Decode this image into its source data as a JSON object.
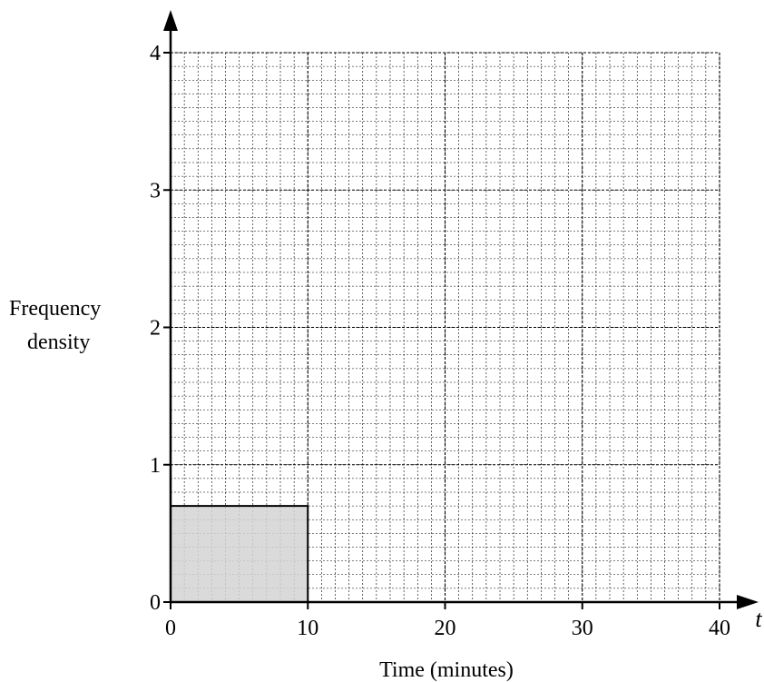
{
  "chart_data": {
    "type": "bar",
    "subtype": "histogram",
    "bars": [
      {
        "x_start": 0,
        "x_end": 10,
        "frequency_density": 0.7
      }
    ],
    "xlim": [
      0,
      40
    ],
    "ylim": [
      0,
      4
    ],
    "x_ticks": [
      0,
      10,
      20,
      30,
      40
    ],
    "y_ticks": [
      0,
      1,
      2,
      3,
      4
    ],
    "x_tick_labels": [
      "0",
      "10",
      "20",
      "30",
      "40"
    ],
    "y_tick_labels": [
      "0",
      "1",
      "2",
      "3",
      "4"
    ],
    "xlabel": "Time (minutes)",
    "ylabel_line1": "Frequency",
    "ylabel_line2": "density",
    "x_variable": "t",
    "grid": true,
    "grid_major_x_step": 10,
    "grid_minor_x_step": 1,
    "grid_major_y_step": 1,
    "grid_minor_y_step": 0.1,
    "colors": {
      "bar_fill": "#d4d4d4",
      "bar_stroke": "#000000",
      "axis": "#000000",
      "grid": "#000000"
    }
  }
}
